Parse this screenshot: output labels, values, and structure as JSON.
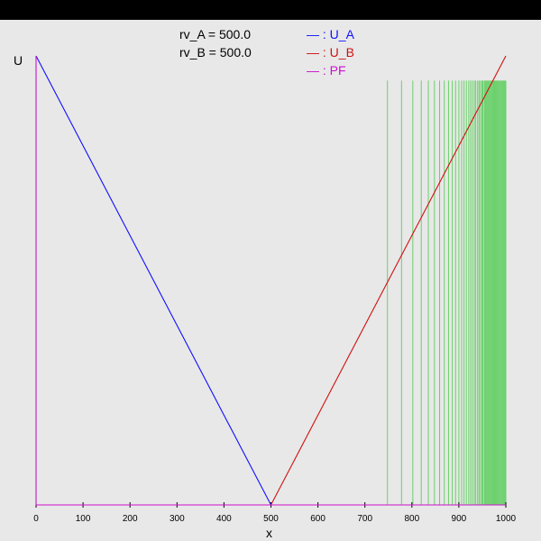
{
  "params": {
    "rv_a": "rv_A = 500.0",
    "rv_b": "rv_B = 500.0"
  },
  "legend": [
    {
      "label": "— : U_A",
      "color": "#1010ff"
    },
    {
      "label": "— : U_B",
      "color": "#d01010"
    },
    {
      "label": "— : PF",
      "color": "#cc11cc"
    }
  ],
  "chart_data": {
    "type": "line",
    "xlabel": "x",
    "ylabel": "U",
    "xlim": [
      0,
      1000
    ],
    "ylim": [
      0,
      1
    ],
    "x_ticks": [
      "0",
      "100",
      "200",
      "300",
      "400",
      "500",
      "600",
      "700",
      "800",
      "900",
      "1000"
    ],
    "series": [
      {
        "name": "U_A",
        "color": "#1010ff",
        "x": [
          0,
          500,
          1000
        ],
        "y": [
          1,
          0,
          0
        ]
      },
      {
        "name": "U_B",
        "color": "#d01010",
        "x": [
          0,
          500,
          1000
        ],
        "y": [
          0,
          0,
          1
        ]
      },
      {
        "name": "PF",
        "color": "#cc11cc",
        "x": [
          0,
          0,
          1000
        ],
        "y": [
          1,
          0,
          0
        ]
      }
    ],
    "particles": {
      "color": "#00bb00",
      "y_top": 0.945,
      "x": [
        748,
        778,
        802,
        820,
        835,
        848,
        859,
        869,
        878,
        886,
        893,
        900,
        906,
        911,
        916,
        921,
        925,
        929,
        933,
        936,
        940,
        943,
        946,
        949,
        951,
        954,
        956,
        958,
        960,
        962,
        964,
        966,
        968,
        970,
        972,
        974,
        976,
        978,
        980,
        982,
        984,
        986,
        988,
        990,
        992,
        994,
        996,
        998,
        1000
      ]
    }
  }
}
